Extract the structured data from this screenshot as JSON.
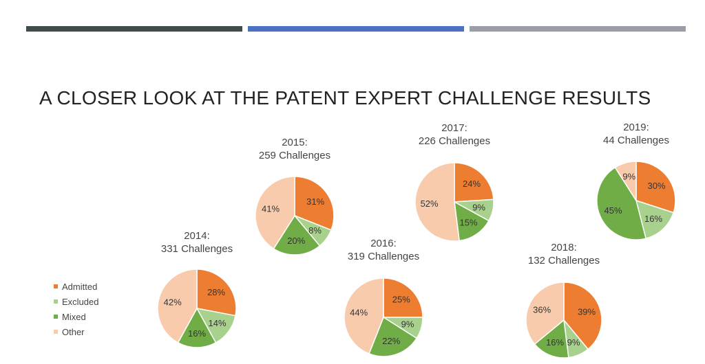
{
  "slide": {
    "title": "A CLOSER LOOK AT THE PATENT EXPERT CHALLENGE RESULTS",
    "top_bar_colors": [
      "#414a4c",
      "#4a72c0",
      "#9a9ea6"
    ]
  },
  "chart_data": {
    "type": "pie",
    "categories": [
      "Admitted",
      "Excluded",
      "Mixed",
      "Other"
    ],
    "colors": [
      "#ed7d31",
      "#a9d18e",
      "#70ad47",
      "#f8cbad"
    ],
    "legend_position": "left",
    "pies": [
      {
        "year": "2014:",
        "count_label": "331 Challenges",
        "values": [
          28,
          14,
          16,
          42
        ]
      },
      {
        "year": "2015:",
        "count_label": "259 Challenges",
        "values": [
          31,
          8,
          20,
          41
        ]
      },
      {
        "year": "2016:",
        "count_label": "319 Challenges",
        "values": [
          25,
          9,
          22,
          44
        ]
      },
      {
        "year": "2017:",
        "count_label": "226 Challenges",
        "values": [
          24,
          9,
          15,
          52
        ]
      },
      {
        "year": "2018:",
        "count_label": "132 Challenges",
        "values": [
          39,
          9,
          16,
          36
        ]
      },
      {
        "year": "2019:",
        "count_label": "44 Challenges",
        "values": [
          30,
          16,
          45,
          9
        ]
      }
    ]
  }
}
